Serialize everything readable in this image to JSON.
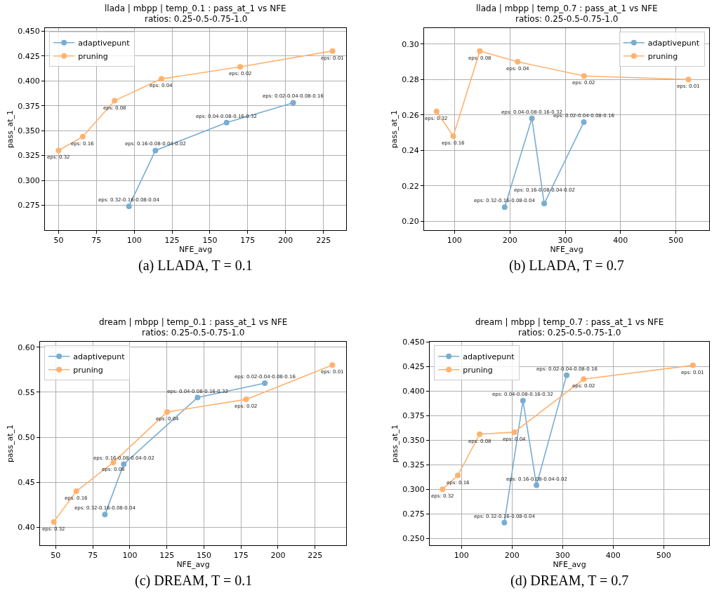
{
  "chart_data": [
    {
      "type": "line",
      "title": "llada | mbpp | temp_0.1 : pass_at_1 vs NFE",
      "subtitle": "ratios: 0.25-0.5-0.75-1.0",
      "xlabel": "NFE_avg",
      "ylabel": "pass_at_1",
      "xlim": [
        41,
        240
      ],
      "ylim": [
        0.25,
        0.453
      ],
      "xticks": [
        50,
        75,
        100,
        125,
        150,
        175,
        200,
        225
      ],
      "yticks": [
        0.275,
        {
          "value": 0.3,
          "label": "0.300"
        },
        0.325,
        {
          "value": 0.35,
          "label": "0.350"
        },
        0.375,
        {
          "value": 0.4,
          "label": "0.400"
        },
        0.425,
        {
          "value": 0.45,
          "label": "0.450"
        }
      ],
      "grid": true,
      "legend": "top left",
      "marker": "circle",
      "line_style": "solid",
      "series": [
        {
          "name": "adaptivepunt",
          "color": "#79add2",
          "x": [
            96.5,
            114,
            161,
            205
          ],
          "values": [
            0.274,
            0.33,
            0.358,
            0.378
          ]
        },
        {
          "name": "pruning",
          "color": "#ffb26e",
          "x": [
            50,
            66,
            87,
            118,
            170,
            231
          ],
          "values": [
            0.33,
            0.344,
            0.38,
            0.402,
            0.414,
            0.43
          ]
        }
      ],
      "annotations": [
        {
          "text": "eps: 0.32-0.16-0.08-0.04",
          "x": 96.5,
          "y": 0.274
        },
        {
          "text": "eps: 0.16-0.08-0.04-0.02",
          "x": 114,
          "y": 0.33
        },
        {
          "text": "eps: 0.04-0.08-0.16-0.32",
          "x": 161,
          "y": 0.358
        },
        {
          "text": "eps: 0.02-0.04-0.08-0.16",
          "x": 205,
          "y": 0.378
        },
        {
          "text": "eps: 0.32",
          "x": 50,
          "y": 0.33
        },
        {
          "text": "eps: 0.16",
          "x": 66,
          "y": 0.344
        },
        {
          "text": "eps: 0.08",
          "x": 87,
          "y": 0.38
        },
        {
          "text": "eps: 0.04",
          "x": 118,
          "y": 0.402
        },
        {
          "text": "eps: 0.02",
          "x": 170,
          "y": 0.414
        },
        {
          "text": "eps: 0.01",
          "x": 231,
          "y": 0.43
        },
        "(a) LLADA, T = 0.1"
      ]
    },
    {
      "type": "line",
      "title": "llada | mbpp | temp_0.7 : pass_at_1 vs NFE",
      "subtitle": "ratios: 0.25-0.5-0.75-1.0",
      "xlabel": "NFE_avg",
      "ylabel": "pass_at_1",
      "xlim": [
        45,
        560
      ],
      "ylim": [
        0.195,
        0.309
      ],
      "xticks": [
        100,
        200,
        300,
        400,
        500
      ],
      "yticks": [
        {
          "value": 0.2,
          "label": "0.20"
        },
        0.22,
        0.24,
        0.26,
        0.28,
        {
          "value": 0.3,
          "label": "0.30"
        }
      ],
      "grid": true,
      "legend": "top right",
      "marker": "circle",
      "line_style": "solid",
      "series": [
        {
          "name": "adaptivepunt",
          "color": "#79add2",
          "x": [
            190.6,
            239.8,
            262,
            333.6
          ],
          "values": [
            0.208,
            0.258,
            0.21,
            0.256
          ]
        },
        {
          "name": "pruning",
          "color": "#ffb26e",
          "x": [
            67.6,
            97.7,
            145.7,
            214,
            334,
            522.7
          ],
          "values": [
            0.262,
            0.248,
            0.296,
            0.29,
            0.282,
            0.28
          ]
        }
      ],
      "annotations": [
        {
          "text": "eps: 0.32-0.16-0.08-0.04",
          "x": 190.6,
          "y": 0.208
        },
        {
          "text": "eps: 0.04-0.08-0.16-0.32",
          "x": 239.8,
          "y": 0.258
        },
        {
          "text": "eps: 0.16-0.08-0.04-0.02",
          "x": 262,
          "y": 0.21
        },
        {
          "text": "eps: 0.02-0.04-0.08-0.16",
          "x": 333.6,
          "y": 0.256
        },
        {
          "text": "eps: 0.32",
          "x": 67.6,
          "y": 0.262
        },
        {
          "text": "eps: 0.16",
          "x": 97.7,
          "y": 0.248
        },
        {
          "text": "eps: 0.08",
          "x": 145.7,
          "y": 0.296
        },
        {
          "text": "eps: 0.04",
          "x": 214,
          "y": 0.29
        },
        {
          "text": "eps: 0.02",
          "x": 334,
          "y": 0.282
        },
        {
          "text": "eps: 0.01",
          "x": 522.7,
          "y": 0.28
        },
        "(b) LLADA, T = 0.7"
      ]
    },
    {
      "type": "line",
      "title": "dream | mbpp | temp_0.1 : pass_at_1 vs NFE",
      "subtitle": "ratios: 0.25-0.5-0.75-1.0",
      "xlabel": "NFE_avg",
      "ylabel": "pass_at_1",
      "xlim": [
        39.4,
        246
      ],
      "ylim": [
        0.38,
        0.606
      ],
      "xticks": [
        50,
        75,
        100,
        125,
        150,
        175,
        200,
        225
      ],
      "yticks": [
        {
          "value": 0.4,
          "label": "0.40"
        },
        0.45,
        {
          "value": 0.5,
          "label": "0.50"
        },
        0.55,
        {
          "value": 0.6,
          "label": "0.60"
        }
      ],
      "grid": true,
      "legend": "top left",
      "marker": "circle",
      "line_style": "solid",
      "series": [
        {
          "name": "adaptivepunt",
          "color": "#79add2",
          "x": [
            83.2,
            95.9,
            145.7,
            191.1
          ],
          "values": [
            0.414,
            0.47,
            0.544,
            0.56
          ]
        },
        {
          "name": "pruning",
          "color": "#ffb26e",
          "x": [
            48.7,
            63.9,
            88.9,
            125.2,
            178.5,
            236.7
          ],
          "values": [
            0.406,
            0.44,
            0.472,
            0.528,
            0.542,
            0.58
          ]
        }
      ],
      "annotations": [
        {
          "text": "eps: 0.32-0.16-0.08-0.04",
          "x": 83.2,
          "y": 0.414
        },
        {
          "text": "eps: 0.16-0.08-0.04-0.02",
          "x": 95.9,
          "y": 0.47
        },
        {
          "text": "eps: 0.04-0.08-0.16-0.32",
          "x": 145.7,
          "y": 0.544
        },
        {
          "text": "eps: 0.02-0.04-0.08-0.16",
          "x": 191.1,
          "y": 0.56
        },
        {
          "text": "eps: 0.32",
          "x": 48.7,
          "y": 0.406
        },
        {
          "text": "eps: 0.16",
          "x": 63.9,
          "y": 0.44
        },
        {
          "text": "eps: 0.08",
          "x": 88.9,
          "y": 0.472
        },
        {
          "text": "eps: 0.04",
          "x": 125.2,
          "y": 0.528
        },
        {
          "text": "eps: 0.02",
          "x": 178.5,
          "y": 0.542
        },
        {
          "text": "eps: 0.01",
          "x": 236.7,
          "y": 0.58
        },
        "(c) DREAM, T = 0.1"
      ]
    },
    {
      "type": "line",
      "title": "dream | mbpp | temp_0.7 : pass_at_1 vs NFE",
      "subtitle": "ratios: 0.25-0.5-0.75-1.0",
      "xlabel": "NFE_avg",
      "ylabel": "pass_at_1",
      "xlim": [
        37,
        590
      ],
      "ylim": [
        0.243,
        0.45
      ],
      "xticks": [
        100,
        200,
        300,
        400,
        500
      ],
      "yticks": [
        {
          "value": 0.25,
          "label": "0.250"
        },
        0.275,
        {
          "value": 0.3,
          "label": "0.300"
        },
        0.325,
        {
          "value": 0.35,
          "label": "0.350"
        },
        0.375,
        {
          "value": 0.4,
          "label": "0.400"
        },
        0.425,
        {
          "value": 0.45,
          "label": "0.450"
        }
      ],
      "grid": true,
      "legend": "top left",
      "marker": "circle",
      "line_style": "solid",
      "series": [
        {
          "name": "adaptivepunt",
          "color": "#79add2",
          "x": [
            184.7,
            221.5,
            248.3,
            308
          ],
          "values": [
            0.266,
            0.39,
            0.304,
            0.416
          ]
        },
        {
          "name": "pruning",
          "color": "#ffb26e",
          "x": [
            62.4,
            92.6,
            135.9,
            204.3,
            341.8,
            558
          ],
          "values": [
            0.3,
            0.314,
            0.356,
            0.358,
            0.412,
            0.426
          ]
        }
      ],
      "annotations": [
        {
          "text": "eps: 0.32-0.16-0.08-0.04",
          "x": 184.7,
          "y": 0.266
        },
        {
          "text": "eps: 0.04-0.08-0.16-0.32",
          "x": 221.5,
          "y": 0.39
        },
        {
          "text": "eps: 0.16-0.08-0.04-0.02",
          "x": 248.3,
          "y": 0.304
        },
        {
          "text": "eps: 0.02-0.04-0.08-0.16",
          "x": 308,
          "y": 0.416
        },
        {
          "text": "eps: 0.32",
          "x": 62.4,
          "y": 0.3
        },
        {
          "text": "eps: 0.16",
          "x": 92.6,
          "y": 0.314
        },
        {
          "text": "eps: 0.08",
          "x": 135.9,
          "y": 0.356
        },
        {
          "text": "eps: 0.04",
          "x": 204.3,
          "y": 0.358
        },
        {
          "text": "eps: 0.02",
          "x": 341.8,
          "y": 0.412
        },
        {
          "text": "eps: 0.01",
          "x": 558,
          "y": 0.426
        },
        "(d) DREAM, T = 0.7"
      ]
    }
  ]
}
